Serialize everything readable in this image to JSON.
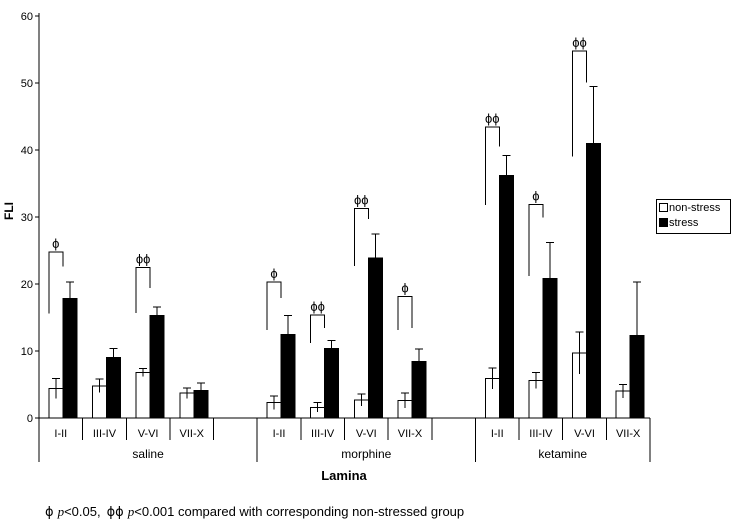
{
  "chart_data": {
    "type": "bar",
    "title": "",
    "ylabel": "FLI",
    "xlabel": "Lamina",
    "ylim": [
      0,
      60
    ],
    "yticks": [
      0,
      10,
      20,
      30,
      40,
      50,
      60
    ],
    "grid": false,
    "legend_position": "right-outside",
    "colors": {
      "non_stress_fill": "#ffffff",
      "stress_fill": "#000000",
      "axis": "#000000",
      "background": "#ffffff"
    },
    "legend": [
      {
        "label": "non-stress",
        "fill": "#ffffff"
      },
      {
        "label": "stress",
        "fill": "#000000"
      }
    ],
    "lamina_labels": [
      "I-II",
      "III-IV",
      "V-VI",
      "VII-X"
    ],
    "groups": [
      {
        "label": "saline",
        "bars": [
          {
            "lamina": "I-II",
            "non_stress": {
              "value": 4.4,
              "err": 1.5
            },
            "stress": {
              "value": 17.8,
              "err": 2.5
            },
            "marker": "ϕ",
            "bracket": {
              "top": 24.8,
              "left_bottom": 15.6,
              "right_bottom": 22.6
            }
          },
          {
            "lamina": "III-IV",
            "non_stress": {
              "value": 4.8,
              "err": 1.0
            },
            "stress": {
              "value": 9.0,
              "err": 1.4
            },
            "marker": null,
            "bracket": null
          },
          {
            "lamina": "V-VI",
            "non_stress": {
              "value": 6.8,
              "err": 0.6
            },
            "stress": {
              "value": 15.3,
              "err": 1.3
            },
            "marker": "ϕϕ",
            "bracket": {
              "top": 22.5,
              "left_bottom": 15.7,
              "right_bottom": 19.4
            }
          },
          {
            "lamina": "VII-X",
            "non_stress": {
              "value": 3.7,
              "err": 0.8
            },
            "stress": {
              "value": 4.1,
              "err": 1.1
            },
            "marker": null,
            "bracket": null
          }
        ]
      },
      {
        "label": "morphine",
        "bars": [
          {
            "lamina": "I-II",
            "non_stress": {
              "value": 2.3,
              "err": 1.0
            },
            "stress": {
              "value": 12.5,
              "err": 2.8
            },
            "marker": "ϕ",
            "bracket": {
              "top": 20.3,
              "left_bottom": 13.1,
              "right_bottom": 17.9
            }
          },
          {
            "lamina": "III-IV",
            "non_stress": {
              "value": 1.6,
              "err": 0.7
            },
            "stress": {
              "value": 10.4,
              "err": 1.2
            },
            "marker": "ϕϕ",
            "bracket": {
              "top": 15.4,
              "left_bottom": 11.2,
              "right_bottom": 13.4
            }
          },
          {
            "lamina": "V-VI",
            "non_stress": {
              "value": 2.7,
              "err": 0.9
            },
            "stress": {
              "value": 23.9,
              "err": 3.6
            },
            "marker": "ϕϕ",
            "bracket": {
              "top": 31.3,
              "left_bottom": 22.7,
              "right_bottom": 29.7
            }
          },
          {
            "lamina": "VII-X",
            "non_stress": {
              "value": 2.6,
              "err": 1.1
            },
            "stress": {
              "value": 8.4,
              "err": 1.9
            },
            "marker": "ϕ",
            "bracket": {
              "top": 18.1,
              "left_bottom": 13.1,
              "right_bottom": 13.4
            }
          }
        ]
      },
      {
        "label": "ketamine",
        "bars": [
          {
            "lamina": "I-II",
            "non_stress": {
              "value": 5.9,
              "err": 1.6
            },
            "stress": {
              "value": 36.2,
              "err": 3.0
            },
            "marker": "ϕϕ",
            "bracket": {
              "top": 43.4,
              "left_bottom": 31.8,
              "right_bottom": 40.5
            }
          },
          {
            "lamina": "III-IV",
            "non_stress": {
              "value": 5.6,
              "err": 1.2
            },
            "stress": {
              "value": 20.8,
              "err": 5.4
            },
            "marker": "ϕ",
            "bracket": {
              "top": 31.9,
              "left_bottom": 21.2,
              "right_bottom": 29.9
            }
          },
          {
            "lamina": "V-VI",
            "non_stress": {
              "value": 9.7,
              "err": 3.1
            },
            "stress": {
              "value": 41.0,
              "err": 8.5
            },
            "marker": "ϕϕ",
            "bracket": {
              "top": 54.8,
              "left_bottom": 39.0,
              "right_bottom": 50.1
            }
          },
          {
            "lamina": "VII-X",
            "non_stress": {
              "value": 4.0,
              "err": 1.0
            },
            "stress": {
              "value": 12.3,
              "err": 8.0
            },
            "marker": null,
            "bracket": null
          }
        ]
      }
    ],
    "footnote": {
      "sym1": "ϕ",
      "p1": "p",
      "cmp1": "<0.05,",
      "sym2": "ϕϕ",
      "p2": "p",
      "cmp2": "<0.001 compared with corresponding non-stressed group"
    }
  }
}
